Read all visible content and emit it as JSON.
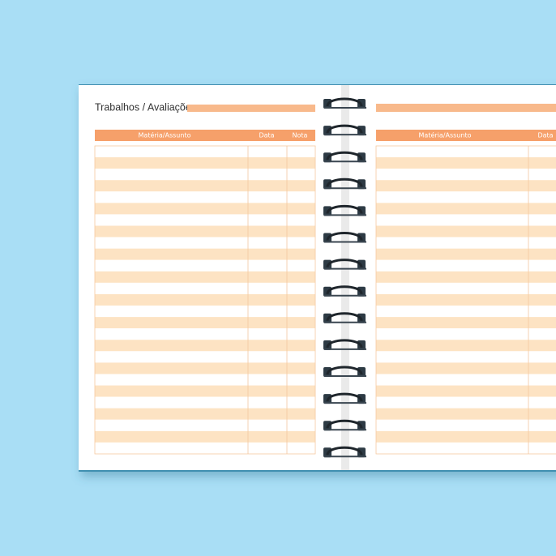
{
  "left_page": {
    "title": "Trabalhos / Avaliações",
    "headers": [
      "Matéria/Assunto",
      "Data",
      "Nota"
    ]
  },
  "right_page": {
    "headers": [
      "Matéria/Assunto",
      "Data"
    ]
  }
}
